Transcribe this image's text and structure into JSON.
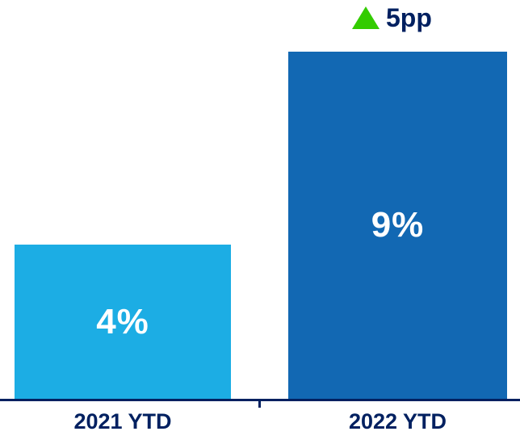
{
  "chart_data": {
    "type": "bar",
    "title": "",
    "xlabel": "",
    "ylabel": "",
    "categories": [
      "2021 YTD",
      "2022 YTD"
    ],
    "values": [
      4,
      9
    ],
    "value_labels": [
      "4%",
      "9%"
    ],
    "ylim": [
      0,
      10
    ],
    "grid": false,
    "legend": false,
    "bar_colors": [
      "#1CADE4",
      "#1268B3"
    ],
    "value_label_color": "#FFFFFF",
    "axis_color": "#002060",
    "category_label_color": "#002060",
    "annotation": {
      "text": "5pp",
      "icon": "up-triangle-icon",
      "icon_color": "#33CC00",
      "text_color": "#002060",
      "position": "above 2022 YTD bar"
    }
  }
}
